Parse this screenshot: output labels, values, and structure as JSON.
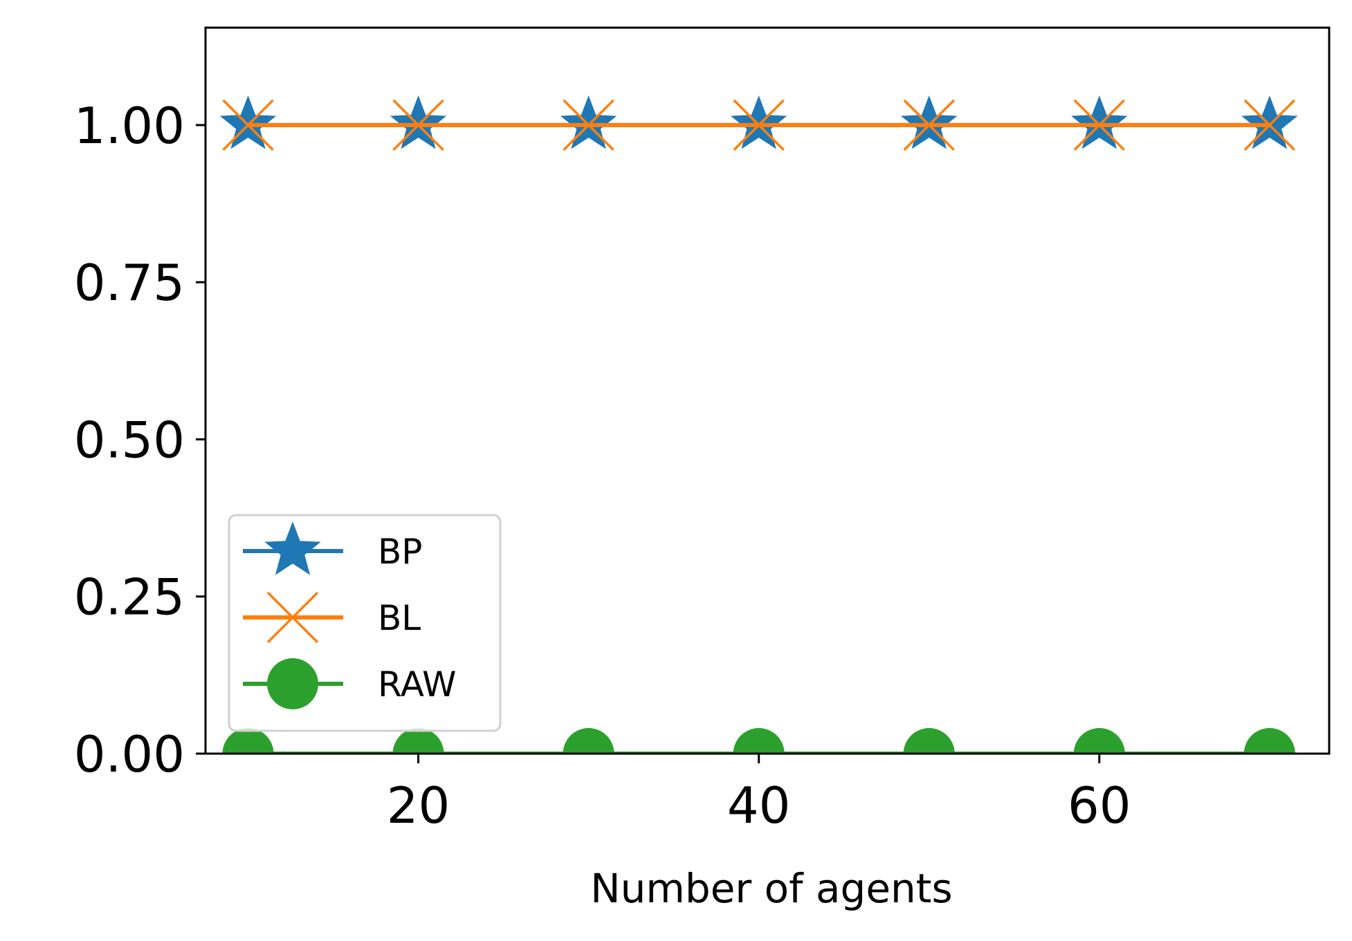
{
  "chart_data": {
    "type": "line",
    "title": "",
    "xlabel": "Number of agents",
    "ylabel": "",
    "x": [
      10,
      20,
      30,
      40,
      50,
      60,
      70
    ],
    "xlim": [
      7.5,
      73.5
    ],
    "ylim": [
      0,
      1.155
    ],
    "xticks": [
      20,
      40,
      60
    ],
    "xtick_labels": [
      "20",
      "40",
      "60"
    ],
    "yticks": [
      0,
      0.25,
      0.5,
      0.75,
      1.0
    ],
    "ytick_labels": [
      "0.00",
      "0.25",
      "0.50",
      "0.75",
      "1.00"
    ],
    "grid": false,
    "legend_position": "lower-left",
    "series": [
      {
        "name": "BP",
        "values": [
          1,
          1,
          1,
          1,
          1,
          1,
          1
        ],
        "color": "#1f77b4",
        "marker": "star"
      },
      {
        "name": "BL",
        "values": [
          1,
          1,
          1,
          1,
          1,
          1,
          1
        ],
        "color": "#ff7f0e",
        "marker": "x"
      },
      {
        "name": "RAW",
        "values": [
          0,
          0,
          0,
          0,
          0,
          0,
          0
        ],
        "color": "#2ca02c",
        "marker": "circle"
      }
    ]
  }
}
